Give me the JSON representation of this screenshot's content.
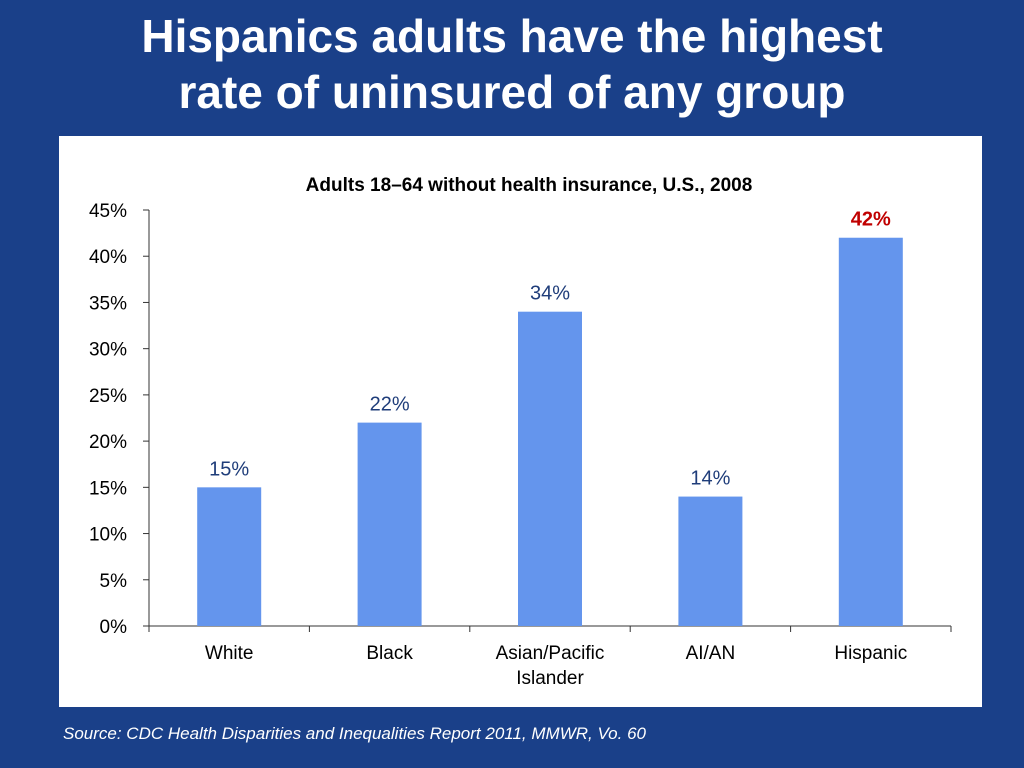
{
  "slide": {
    "title_line1": "Hispanics adults have the highest",
    "title_line2": "rate of uninsured of any group",
    "source": "Source: CDC Health Disparities and Inequalities Report 2011, MMWR, Vo. 60"
  },
  "chart_data": {
    "type": "bar",
    "title": "Adults 18–64 without health insurance, U.S., 2008",
    "categories": [
      {
        "line1": "White",
        "line2": ""
      },
      {
        "line1": "Black",
        "line2": ""
      },
      {
        "line1": "Asian/Pacific",
        "line2": "Islander"
      },
      {
        "line1": "AI/AN",
        "line2": ""
      },
      {
        "line1": "Hispanic",
        "line2": ""
      }
    ],
    "values": [
      15,
      22,
      34,
      14,
      42
    ],
    "data_labels": [
      "15%",
      "22%",
      "34%",
      "14%",
      "42%"
    ],
    "highlight_index": 4,
    "ylim": [
      0,
      45
    ],
    "yticks": [
      0,
      5,
      10,
      15,
      20,
      25,
      30,
      35,
      40,
      45
    ],
    "ytick_labels": [
      "0%",
      "5%",
      "10%",
      "15%",
      "20%",
      "25%",
      "30%",
      "35%",
      "40%",
      "45%"
    ],
    "grid": false,
    "colors": {
      "bar": "#6495ed",
      "label": "#1f3d7a",
      "highlight_label": "#c00000",
      "axis": "#333333",
      "text": "#000000"
    }
  }
}
